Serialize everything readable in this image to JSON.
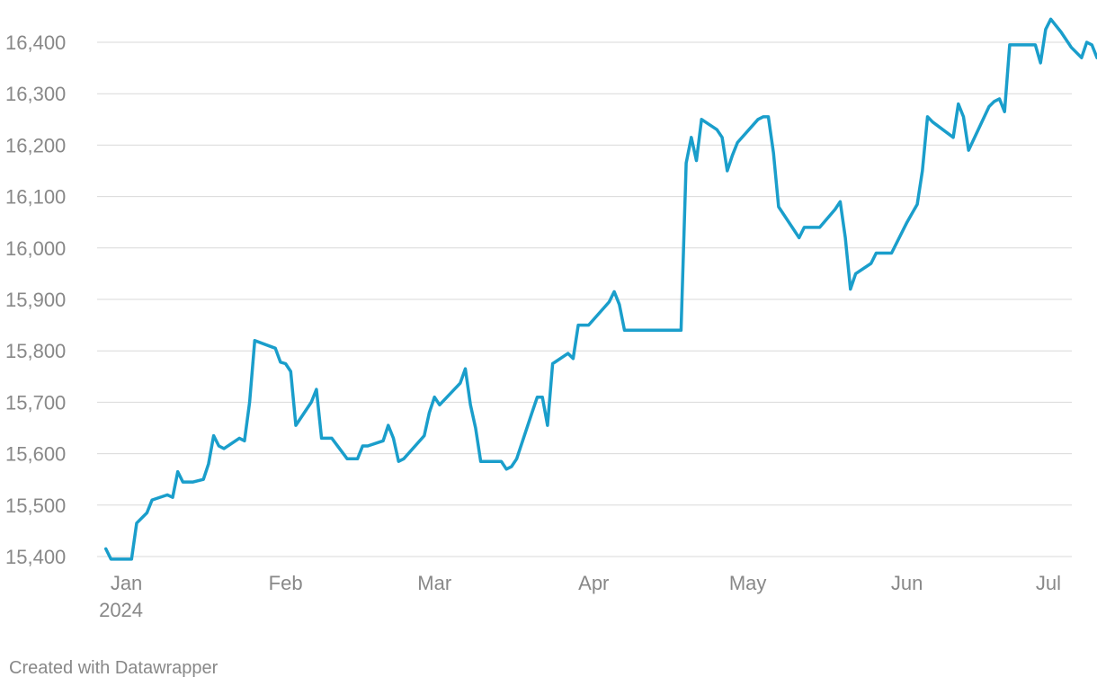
{
  "colors": {
    "line": "#1a9ecb",
    "grid": "#d9d9d9",
    "tick_text": "#888888",
    "credit_text": "#888888",
    "background": "#ffffff"
  },
  "credit": "Created with Datawrapper",
  "chart_data": {
    "type": "line",
    "title": "",
    "xlabel": "",
    "ylabel": "",
    "ylim": [
      15400,
      16400
    ],
    "xlim": [
      "2023-12-27",
      "2024-07-01"
    ],
    "grid": true,
    "legend": "none",
    "y_ticks": [
      15400,
      15500,
      15600,
      15700,
      15800,
      15900,
      16000,
      16100,
      16200,
      16300,
      16400
    ],
    "y_tick_labels": [
      "15,400",
      "15,500",
      "15,600",
      "15,700",
      "15,800",
      "15,900",
      "16,000",
      "16,100",
      "16,200",
      "16,300",
      "16,400"
    ],
    "x_ticks": [
      {
        "date": "2024-01-01",
        "label": "Jan",
        "sublabel": "2024"
      },
      {
        "date": "2024-02-01",
        "label": "Feb",
        "sublabel": ""
      },
      {
        "date": "2024-03-01",
        "label": "Mar",
        "sublabel": ""
      },
      {
        "date": "2024-04-01",
        "label": "Apr",
        "sublabel": ""
      },
      {
        "date": "2024-05-01",
        "label": "May",
        "sublabel": ""
      },
      {
        "date": "2024-06-01",
        "label": "Jun",
        "sublabel": ""
      },
      {
        "date": "2024-07-01",
        "label": "Jul",
        "sublabel": ""
      }
    ],
    "series": [
      {
        "points": [
          [
            "2023-12-28",
            15415
          ],
          [
            "2023-12-29",
            15395
          ],
          [
            "2024-01-02",
            15395
          ],
          [
            "2024-01-03",
            15465
          ],
          [
            "2024-01-05",
            15485
          ],
          [
            "2024-01-06",
            15510
          ],
          [
            "2024-01-09",
            15520
          ],
          [
            "2024-01-10",
            15515
          ],
          [
            "2024-01-11",
            15565
          ],
          [
            "2024-01-12",
            15545
          ],
          [
            "2024-01-14",
            15545
          ],
          [
            "2024-01-16",
            15550
          ],
          [
            "2024-01-17",
            15580
          ],
          [
            "2024-01-18",
            15635
          ],
          [
            "2024-01-19",
            15615
          ],
          [
            "2024-01-20",
            15610
          ],
          [
            "2024-01-23",
            15630
          ],
          [
            "2024-01-24",
            15625
          ],
          [
            "2024-01-25",
            15700
          ],
          [
            "2024-01-26",
            15820
          ],
          [
            "2024-01-30",
            15805
          ],
          [
            "2024-01-31",
            15778
          ],
          [
            "2024-02-01",
            15775
          ],
          [
            "2024-02-02",
            15760
          ],
          [
            "2024-02-03",
            15655
          ],
          [
            "2024-02-06",
            15700
          ],
          [
            "2024-02-07",
            15725
          ],
          [
            "2024-02-08",
            15630
          ],
          [
            "2024-02-10",
            15630
          ],
          [
            "2024-02-13",
            15590
          ],
          [
            "2024-02-15",
            15590
          ],
          [
            "2024-02-16",
            15615
          ],
          [
            "2024-02-17",
            15615
          ],
          [
            "2024-02-20",
            15625
          ],
          [
            "2024-02-21",
            15655
          ],
          [
            "2024-02-22",
            15630
          ],
          [
            "2024-02-23",
            15585
          ],
          [
            "2024-02-24",
            15590
          ],
          [
            "2024-02-28",
            15635
          ],
          [
            "2024-02-29",
            15680
          ],
          [
            "2024-03-01",
            15710
          ],
          [
            "2024-03-02",
            15695
          ],
          [
            "2024-03-06",
            15737
          ],
          [
            "2024-03-07",
            15765
          ],
          [
            "2024-03-08",
            15695
          ],
          [
            "2024-03-09",
            15650
          ],
          [
            "2024-03-10",
            15585
          ],
          [
            "2024-03-14",
            15585
          ],
          [
            "2024-03-15",
            15570
          ],
          [
            "2024-03-16",
            15575
          ],
          [
            "2024-03-17",
            15590
          ],
          [
            "2024-03-20",
            15680
          ],
          [
            "2024-03-21",
            15710
          ],
          [
            "2024-03-22",
            15710
          ],
          [
            "2024-03-23",
            15655
          ],
          [
            "2024-03-24",
            15775
          ],
          [
            "2024-03-27",
            15795
          ],
          [
            "2024-03-28",
            15785
          ],
          [
            "2024-03-29",
            15850
          ],
          [
            "2024-03-31",
            15850
          ],
          [
            "2024-04-04",
            15895
          ],
          [
            "2024-04-05",
            15915
          ],
          [
            "2024-04-06",
            15890
          ],
          [
            "2024-04-07",
            15840
          ],
          [
            "2024-04-18",
            15840
          ],
          [
            "2024-04-19",
            16165
          ],
          [
            "2024-04-20",
            16215
          ],
          [
            "2024-04-21",
            16170
          ],
          [
            "2024-04-22",
            16250
          ],
          [
            "2024-04-25",
            16230
          ],
          [
            "2024-04-26",
            16215
          ],
          [
            "2024-04-27",
            16150
          ],
          [
            "2024-04-28",
            16180
          ],
          [
            "2024-04-29",
            16205
          ],
          [
            "2024-05-03",
            16250
          ],
          [
            "2024-05-04",
            16255
          ],
          [
            "2024-05-05",
            16255
          ],
          [
            "2024-05-06",
            16185
          ],
          [
            "2024-05-07",
            16080
          ],
          [
            "2024-05-11",
            16020
          ],
          [
            "2024-05-12",
            16040
          ],
          [
            "2024-05-15",
            16040
          ],
          [
            "2024-05-18",
            16075
          ],
          [
            "2024-05-19",
            16090
          ],
          [
            "2024-05-20",
            16020
          ],
          [
            "2024-05-21",
            15920
          ],
          [
            "2024-05-22",
            15950
          ],
          [
            "2024-05-25",
            15970
          ],
          [
            "2024-05-26",
            15990
          ],
          [
            "2024-05-29",
            15990
          ],
          [
            "2024-06-01",
            16050
          ],
          [
            "2024-06-03",
            16085
          ],
          [
            "2024-06-04",
            16150
          ],
          [
            "2024-06-05",
            16255
          ],
          [
            "2024-06-06",
            16245
          ],
          [
            "2024-06-10",
            16215
          ],
          [
            "2024-06-11",
            16280
          ],
          [
            "2024-06-12",
            16255
          ],
          [
            "2024-06-13",
            16190
          ],
          [
            "2024-06-17",
            16275
          ],
          [
            "2024-06-18",
            16285
          ],
          [
            "2024-06-19",
            16290
          ],
          [
            "2024-06-20",
            16265
          ],
          [
            "2024-06-21",
            16395
          ],
          [
            "2024-06-25",
            16395
          ],
          [
            "2024-06-26",
            16395
          ],
          [
            "2024-06-27",
            16360
          ],
          [
            "2024-06-28",
            16425
          ],
          [
            "2024-06-29",
            16445
          ],
          [
            "2024-07-01",
            16420
          ],
          [
            "2024-07-03",
            16390
          ],
          [
            "2024-07-05",
            16370
          ],
          [
            "2024-07-06",
            16400
          ],
          [
            "2024-07-07",
            16395
          ],
          [
            "2024-07-08",
            16370
          ]
        ]
      }
    ]
  }
}
